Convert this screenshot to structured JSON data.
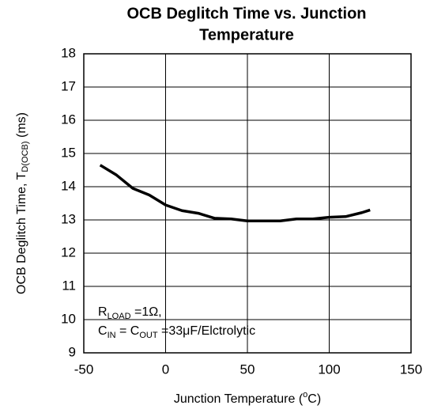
{
  "chart_data": {
    "type": "line",
    "title": [
      "OCB Deglitch Time vs. Junction",
      "Temperature"
    ],
    "y_label": {
      "text": "OCB Deglitch Time, T",
      "sub": "D(OCB)",
      "unit": " (ms)"
    },
    "x_label": {
      "text": "Junction Temperature (",
      "sup": "o",
      "unit": "C)"
    },
    "annotation": [
      {
        "parts": [
          [
            "R",
            "LOAD",
            " =1Ω,"
          ]
        ]
      },
      {
        "parts": [
          [
            "C",
            "IN",
            " = "
          ],
          [
            "C",
            "OUT",
            " =33μF/Elctrolytic"
          ]
        ]
      }
    ],
    "x": [
      -40,
      -30,
      -20,
      -10,
      0,
      10,
      20,
      30,
      40,
      50,
      60,
      70,
      80,
      90,
      100,
      110,
      120,
      125
    ],
    "series": [
      {
        "color": "#000000",
        "values": [
          14.65,
          14.35,
          13.95,
          13.75,
          13.45,
          13.28,
          13.2,
          13.05,
          13.03,
          12.97,
          12.97,
          12.97,
          13.03,
          13.03,
          13.08,
          13.1,
          13.22,
          13.3
        ]
      }
    ],
    "xlim": [
      -50,
      150
    ],
    "xticks": [
      -50,
      0,
      50,
      100,
      150
    ],
    "ylim": [
      9,
      18
    ],
    "yticks": [
      9,
      10,
      11,
      12,
      13,
      14,
      15,
      16,
      17,
      18
    ],
    "grid": true
  }
}
